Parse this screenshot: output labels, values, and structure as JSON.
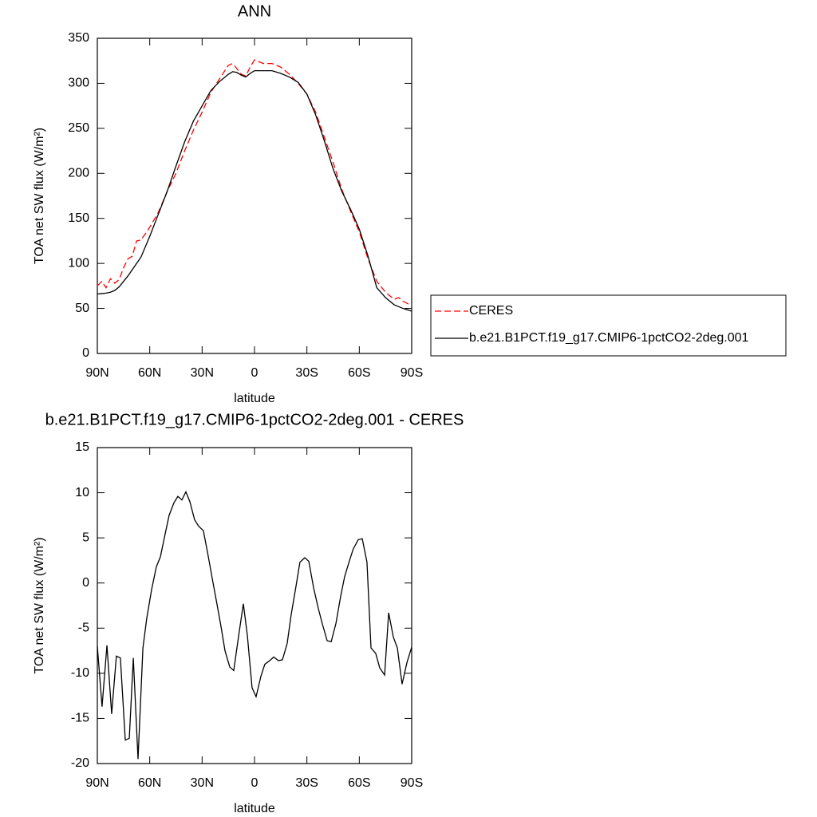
{
  "chart_data": [
    {
      "type": "line",
      "title": "ANN",
      "x_label": "latitude",
      "y_label": "TOA net SW flux (W/m²)",
      "x": [
        90,
        87.5,
        85,
        82.5,
        80,
        77.5,
        75,
        72.5,
        70,
        67.5,
        65,
        60,
        55,
        50,
        45,
        40,
        35,
        30,
        25,
        20,
        15,
        12.5,
        10,
        7.5,
        5,
        2.5,
        0,
        -5,
        -10,
        -15,
        -20,
        -25,
        -30,
        -35,
        -40,
        -45,
        -50,
        -55,
        -60,
        -65,
        -70,
        -75,
        -80,
        -82.5,
        -85,
        -90
      ],
      "series": [
        {
          "name": "CERES",
          "color": "#ff0000",
          "linestyle": "dashed",
          "values": [
            75,
            80,
            73,
            83,
            78,
            82,
            95,
            105,
            108,
            125,
            126,
            140,
            157,
            180,
            200,
            225,
            248,
            268,
            290,
            305,
            320,
            322,
            316,
            310,
            308,
            318,
            326,
            322,
            322,
            318,
            310,
            300,
            288,
            268,
            240,
            212,
            182,
            158,
            135,
            105,
            80,
            68,
            60,
            62,
            58,
            53
          ]
        },
        {
          "name": "b.e21.B1PCT.f19_g17.CMIP6-1pctCO2-2deg.001",
          "color": "#000000",
          "linestyle": "solid",
          "values": [
            66,
            66.5,
            67,
            68,
            70,
            74,
            80,
            86,
            93,
            100,
            107,
            130,
            155,
            180,
            208,
            235,
            258,
            275,
            292,
            302,
            310,
            313,
            312,
            309,
            307,
            311,
            314,
            314,
            314,
            311,
            307,
            301,
            288,
            265,
            236,
            205,
            180,
            160,
            138,
            108,
            73,
            62,
            54,
            52,
            50,
            47
          ]
        }
      ],
      "xlim": [
        90,
        -90
      ],
      "ylim": [
        0,
        350
      ],
      "xticks": [
        {
          "value": 90,
          "label": "90N"
        },
        {
          "value": 60,
          "label": "60N"
        },
        {
          "value": 30,
          "label": "30N"
        },
        0,
        {
          "value": -30,
          "label": "30S"
        },
        {
          "value": -60,
          "label": "60S"
        },
        {
          "value": -90,
          "label": "90S"
        }
      ],
      "yticks": [
        0,
        50,
        100,
        150,
        200,
        250,
        300,
        350
      ],
      "legend": "outside-right"
    },
    {
      "type": "line",
      "title": "b.e21.B1PCT.f19_g17.CMIP6-1pctCO2-2deg.001 - CERES",
      "x_label": "latitude",
      "y_label": "TOA net SW flux (W/m²)",
      "x": [
        90,
        87.3,
        84.5,
        81.8,
        79.1,
        76.8,
        74.0,
        71.7,
        69.4,
        66.7,
        63.9,
        61.7,
        58.9,
        56.2,
        53.9,
        51.2,
        48.9,
        46.1,
        43.9,
        41.6,
        39.3,
        37.0,
        34.3,
        32.0,
        29.3,
        27.0,
        24.2,
        22.0,
        19.2,
        16.9,
        14.2,
        11.9,
        9.2,
        6.4,
        4.1,
        1.4,
        -0.9,
        -3.7,
        -5.9,
        -8.7,
        -11.0,
        -13.7,
        -16.0,
        -18.7,
        -21.0,
        -23.8,
        -26.0,
        -28.8,
        -31.1,
        -33.8,
        -36.5,
        -38.8,
        -41.6,
        -43.9,
        -46.6,
        -49.3,
        -51.6,
        -54.4,
        -56.6,
        -59.4,
        -61.7,
        -64.4,
        -66.7,
        -69.4,
        -71.7,
        -74.5,
        -76.8,
        -79.5,
        -81.8,
        -84.5,
        -87.3,
        -90
      ],
      "series": [
        {
          "color": "#000000",
          "linestyle": "solid",
          "values": [
            -7,
            -13.7,
            -6.9,
            -14.5,
            -8.1,
            -8.3,
            -17.4,
            -17.2,
            -8.3,
            -19.5,
            -7.2,
            -3.9,
            -0.7,
            1.8,
            2.9,
            5.4,
            7.5,
            8.9,
            9.6,
            9.2,
            10.1,
            9,
            7,
            6.3,
            5.8,
            3.5,
            0.5,
            -1.8,
            -4.8,
            -7.5,
            -9.3,
            -9.7,
            -6,
            -2.3,
            -5.8,
            -11.6,
            -12.6,
            -10.3,
            -9,
            -8.6,
            -8.2,
            -8.6,
            -8.5,
            -6.7,
            -3.5,
            -0.3,
            2.3,
            2.8,
            2.4,
            -0.5,
            -2.8,
            -4.5,
            -6.4,
            -6.5,
            -4.5,
            -1.5,
            0.7,
            2.5,
            3.8,
            4.8,
            4.9,
            2.3,
            -7.2,
            -7.8,
            -9.4,
            -10.2,
            -3.3,
            -6,
            -7.2,
            -11.2,
            -8.8,
            -7.1
          ]
        }
      ],
      "xlim": [
        90,
        -90
      ],
      "ylim": [
        -20,
        15
      ],
      "xticks": [
        {
          "value": 90,
          "label": "90N"
        },
        {
          "value": 60,
          "label": "60N"
        },
        {
          "value": 30,
          "label": "30N"
        },
        0,
        {
          "value": -30,
          "label": "30S"
        },
        {
          "value": -60,
          "label": "60S"
        },
        {
          "value": -90,
          "label": "90S"
        }
      ],
      "yticks": [
        -20,
        -15,
        -10,
        -5,
        0,
        5,
        10,
        15
      ]
    }
  ]
}
